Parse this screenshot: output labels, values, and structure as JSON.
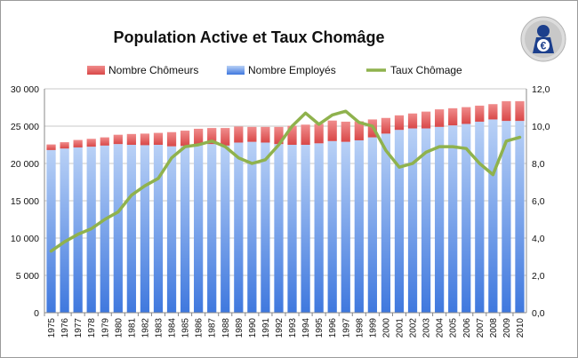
{
  "chart_data": {
    "type": "bar",
    "title": "Population Active et Taux Chomâge",
    "categories": [
      "1975",
      "1976",
      "1977",
      "1978",
      "1979",
      "1980",
      "1981",
      "1982",
      "1983",
      "1984",
      "1985",
      "1986",
      "1987",
      "1988",
      "1989",
      "1990",
      "1991",
      "1992",
      "1993",
      "1994",
      "1995",
      "1996",
      "1997",
      "1998",
      "1999",
      "2000",
      "2001",
      "2002",
      "2003",
      "2004",
      "2005",
      "2006",
      "2007",
      "2008",
      "2009",
      "2010"
    ],
    "stacked": true,
    "series": [
      {
        "name": "Nombre Employés",
        "kind": "bar",
        "axis": "left",
        "color": "#6f9ce8",
        "values": [
          21800,
          22000,
          22150,
          22250,
          22400,
          22600,
          22500,
          22450,
          22500,
          22300,
          22350,
          22500,
          22600,
          22400,
          22800,
          22900,
          22800,
          22600,
          22500,
          22500,
          22700,
          23000,
          22900,
          23100,
          23500,
          24000,
          24500,
          24700,
          24700,
          24900,
          25100,
          25300,
          25600,
          25900,
          25700,
          25700
        ]
      },
      {
        "name": "Nombre Chômeurs",
        "kind": "bar",
        "axis": "left",
        "color": "#e35a5a",
        "values": [
          750,
          850,
          1000,
          1050,
          1100,
          1250,
          1450,
          1550,
          1600,
          1900,
          2050,
          2150,
          2150,
          2350,
          2150,
          2000,
          2100,
          2300,
          2550,
          2700,
          2600,
          2750,
          2700,
          2550,
          2400,
          2100,
          1950,
          2000,
          2250,
          2350,
          2300,
          2250,
          2150,
          2050,
          2650,
          2650
        ]
      },
      {
        "name": "Taux Chômage",
        "kind": "line",
        "axis": "right",
        "color": "#8fb24d",
        "values": [
          3.3,
          3.8,
          4.2,
          4.5,
          5.0,
          5.4,
          6.3,
          6.8,
          7.2,
          8.3,
          8.9,
          9.0,
          9.2,
          8.9,
          8.3,
          8.0,
          8.2,
          9.0,
          10.0,
          10.7,
          10.1,
          10.6,
          10.8,
          10.2,
          10.0,
          8.7,
          7.8,
          8.0,
          8.6,
          8.9,
          8.9,
          8.8,
          8.0,
          7.4,
          9.2,
          9.4
        ]
      }
    ],
    "y_left": {
      "min": 0,
      "max": 30000,
      "step": 5000,
      "tick_labels": [
        "0",
        "5 000",
        "10 000",
        "15 000",
        "20 000",
        "25 000",
        "30 000"
      ]
    },
    "y_right": {
      "min": 0,
      "max": 12,
      "step": 2,
      "tick_labels": [
        "0,0",
        "2,0",
        "4,0",
        "6,0",
        "8,0",
        "10,0",
        "12,0"
      ]
    },
    "grid": "horizontal",
    "legend_placement": "top",
    "legend": [
      {
        "label": "Nombre Chômeurs",
        "color": "#e35a5a",
        "kind": "bar"
      },
      {
        "label": "Nombre Employés",
        "color": "#6f9ce8",
        "kind": "bar"
      },
      {
        "label": "Taux Chômage",
        "color": "#8fb24d",
        "kind": "line"
      }
    ]
  },
  "logo": {
    "icon": "euro-mascot-icon",
    "bg_color": "#d6d6d6",
    "accent_color": "#1c3f8c"
  }
}
